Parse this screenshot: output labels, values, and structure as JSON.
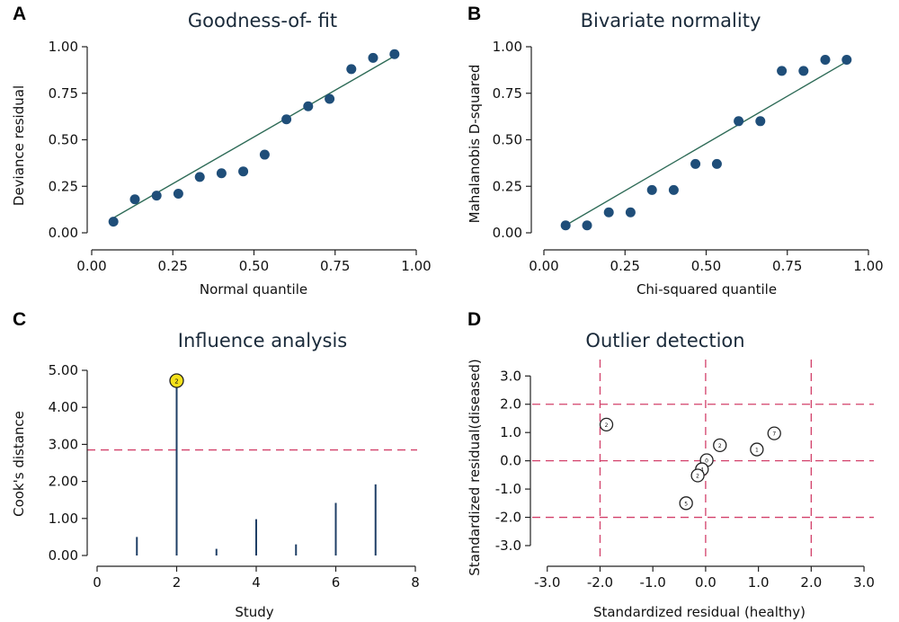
{
  "colors": {
    "point": "#1f4e79",
    "fit_line": "#2e6b57",
    "reference": "#d2406a",
    "highlight": "#f5e11a",
    "spike": "#1f3f66"
  },
  "chart_data": [
    {
      "id": "A",
      "letter": "A",
      "type": "scatter",
      "title": "Goodness-of- fit",
      "xlabel": "Normal quantile",
      "ylabel": "Deviance residual",
      "xlim": [
        0,
        1
      ],
      "ylim": [
        0,
        1
      ],
      "xticks": [
        0,
        0.25,
        0.5,
        0.75,
        1
      ],
      "xtick_labels": [
        "0.00",
        "0.25",
        "0.50",
        "0.75",
        "1.00"
      ],
      "yticks": [
        0,
        0.25,
        0.5,
        0.75,
        1
      ],
      "ytick_labels": [
        "0.00",
        "0.25",
        "0.50",
        "0.75",
        "1.00"
      ],
      "points": {
        "x": [
          0.067,
          0.133,
          0.2,
          0.267,
          0.333,
          0.4,
          0.467,
          0.533,
          0.6,
          0.667,
          0.733,
          0.8,
          0.867,
          0.933
        ],
        "y": [
          0.06,
          0.18,
          0.2,
          0.21,
          0.3,
          0.32,
          0.33,
          0.42,
          0.61,
          0.68,
          0.72,
          0.88,
          0.94,
          0.96
        ]
      },
      "fit_line": {
        "x": [
          0.067,
          0.933
        ],
        "y": [
          0.08,
          0.95
        ]
      }
    },
    {
      "id": "B",
      "letter": "B",
      "type": "scatter",
      "title": "Bivariate normality",
      "xlabel": "Chi-squared quantile",
      "ylabel": "Mahalanobis D-squared",
      "xlim": [
        0,
        1
      ],
      "ylim": [
        0,
        1
      ],
      "xticks": [
        0,
        0.25,
        0.5,
        0.75,
        1
      ],
      "xtick_labels": [
        "0.00",
        "0.25",
        "0.50",
        "0.75",
        "1.00"
      ],
      "yticks": [
        0,
        0.25,
        0.5,
        0.75,
        1
      ],
      "ytick_labels": [
        "0.00",
        "0.25",
        "0.50",
        "0.75",
        "1.00"
      ],
      "points": {
        "x": [
          0.067,
          0.133,
          0.2,
          0.267,
          0.333,
          0.4,
          0.467,
          0.533,
          0.6,
          0.667,
          0.733,
          0.8,
          0.867,
          0.933
        ],
        "y": [
          0.04,
          0.04,
          0.11,
          0.11,
          0.23,
          0.23,
          0.37,
          0.37,
          0.6,
          0.6,
          0.87,
          0.87,
          0.93,
          0.93
        ]
      },
      "fit_line": {
        "x": [
          0.067,
          0.933
        ],
        "y": [
          0.04,
          0.92
        ]
      }
    },
    {
      "id": "C",
      "letter": "C",
      "type": "bar",
      "title": "Influence analysis",
      "xlabel": "Study",
      "ylabel": "Cook's distance",
      "xlim": [
        0,
        8
      ],
      "ylim": [
        0,
        5
      ],
      "xticks": [
        0,
        2,
        4,
        6,
        8
      ],
      "xtick_labels": [
        "0",
        "2",
        "4",
        "6",
        "8"
      ],
      "yticks": [
        0,
        1,
        2,
        3,
        4,
        5
      ],
      "ytick_labels": [
        "0.00",
        "1.00",
        "2.00",
        "3.00",
        "4.00",
        "5.00"
      ],
      "x": [
        1,
        2,
        3,
        4,
        5,
        6,
        7
      ],
      "values": [
        0.5,
        4.72,
        0.18,
        0.98,
        0.3,
        1.42,
        1.92
      ],
      "threshold": 2.85,
      "highlight": {
        "x": 2,
        "value": 4.72,
        "label": "2"
      }
    },
    {
      "id": "D",
      "letter": "D",
      "type": "scatter",
      "title": "Outlier detection",
      "xlabel": "Standardized residual (healthy)",
      "ylabel": "Standardized residual(diseased)",
      "xlim": [
        -3.2,
        3.05
      ],
      "ylim": [
        -3.35,
        3.2
      ],
      "xticks": [
        -3,
        -2,
        -1,
        0,
        1,
        2,
        3
      ],
      "xtick_labels": [
        "-3.0",
        "-2.0",
        "-1.0",
        "0.0",
        "1.0",
        "2.0",
        "3.0"
      ],
      "yticks": [
        -3,
        -2,
        -1,
        0,
        1,
        2,
        3
      ],
      "ytick_labels": [
        "-3.0",
        "-2.0",
        "-1.0",
        "0.0",
        "1.0",
        "2.0",
        "3.0"
      ],
      "hlines": [
        2,
        0,
        -2
      ],
      "vlines": [
        -2,
        0,
        2
      ],
      "points": [
        {
          "x": -1.88,
          "y": 1.28,
          "label": "2"
        },
        {
          "x": 0.27,
          "y": 0.55,
          "label": "2"
        },
        {
          "x": 1.3,
          "y": 0.97,
          "label": "7"
        },
        {
          "x": 0.97,
          "y": 0.4,
          "label": "1"
        },
        {
          "x": 0.02,
          "y": 0.02,
          "label": "0"
        },
        {
          "x": -0.07,
          "y": -0.3,
          "label": "4"
        },
        {
          "x": -0.15,
          "y": -0.52,
          "label": "2"
        },
        {
          "x": -0.37,
          "y": -1.5,
          "label": "5"
        }
      ]
    }
  ]
}
